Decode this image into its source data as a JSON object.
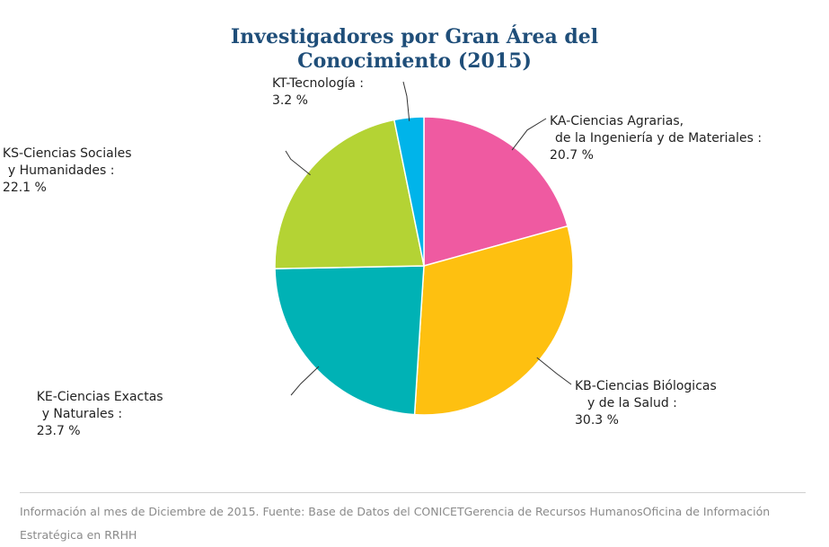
{
  "chart_data": {
    "type": "pie",
    "title_lines": [
      "Investigadores por Gran Área del",
      "Conocimiento (2015)"
    ],
    "slices": [
      {
        "name_lines": [
          "KA-Ciencias Agrarias,",
          "de la Ingeniería y de Materiales :"
        ],
        "value": 20.7,
        "value_label": "20.7 %",
        "color": "#ef5aa1"
      },
      {
        "name_lines": [
          "KB-Ciencias Biólogicas",
          "y de la Salud :"
        ],
        "value": 30.3,
        "value_label": "30.3 %",
        "color": "#fec010"
      },
      {
        "name_lines": [
          "KE-Ciencias Exactas",
          "y Naturales :"
        ],
        "value": 23.7,
        "value_label": "23.7 %",
        "color": "#00b2b5"
      },
      {
        "name_lines": [
          "KS-Ciencias Sociales",
          "y Humanidades :"
        ],
        "value": 22.1,
        "value_label": "22.1 %",
        "color": "#b4d334"
      },
      {
        "name_lines": [
          "KT-Tecnología :"
        ],
        "value": 3.2,
        "value_label": "3.2 %",
        "color": "#00b4ea"
      }
    ]
  },
  "footer": {
    "text": "Información al mes de Diciembre de 2015. Fuente: Base de Datos del CONICETGerencia de Recursos HumanosOficina de Información Estratégica en RRHH"
  }
}
